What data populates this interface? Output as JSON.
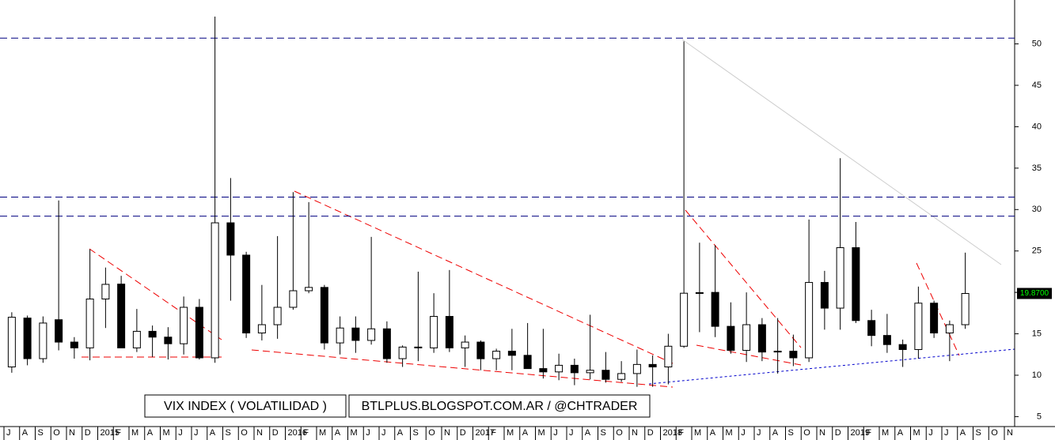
{
  "chart_data": {
    "type": "candlestick",
    "annotations": [
      "VIX INDEX ( VOLATILIDAD )",
      "BTLPLUS.BLOGSPOT.COM.AR / @CHTRADER"
    ],
    "categories": [
      "J",
      "A",
      "S",
      "O",
      "N",
      "D",
      "2015",
      "F",
      "M",
      "A",
      "M",
      "J",
      "J",
      "A",
      "S",
      "O",
      "N",
      "D",
      "2016",
      "F",
      "M",
      "A",
      "M",
      "J",
      "J",
      "A",
      "S",
      "O",
      "N",
      "D",
      "2017",
      "F",
      "M",
      "A",
      "M",
      "J",
      "J",
      "A",
      "S",
      "O",
      "N",
      "D",
      "2018",
      "F",
      "M",
      "A",
      "M",
      "J",
      "J",
      "A",
      "S",
      "O",
      "N",
      "D",
      "2019",
      "F",
      "M",
      "A",
      "M",
      "J",
      "J",
      "A",
      "S",
      "O",
      "N"
    ],
    "open": [
      11.0,
      16.9,
      12.0,
      16.7,
      14.0,
      13.3,
      19.2,
      21.0,
      13.3,
      15.3,
      14.6,
      13.8,
      18.2,
      12.1,
      28.4,
      24.5,
      15.1,
      16.1,
      18.2,
      20.2,
      20.6,
      13.9,
      15.7,
      14.2,
      15.6,
      12.0,
      13.4,
      13.3,
      17.1,
      13.3,
      14.0,
      12.0,
      12.9,
      12.4,
      10.8,
      10.4,
      11.2,
      10.3,
      10.6,
      9.5,
      10.2,
      11.3,
      11.0,
      13.5,
      19.9,
      20.0,
      15.9,
      13.0,
      16.1,
      12.8,
      12.9,
      12.1,
      21.2,
      18.1,
      25.4,
      16.6,
      14.8,
      13.7,
      13.1,
      18.7,
      15.1,
      16.1,
      null,
      null,
      null
    ],
    "high": [
      17.6,
      17.2,
      17.1,
      31.1,
      14.6,
      25.2,
      23.0,
      22.0,
      18.0,
      16.0,
      15.8,
      19.5,
      19.2,
      53.3,
      33.8,
      24.9,
      20.9,
      26.8,
      32.1,
      30.9,
      20.9,
      17.1,
      17.1,
      26.7,
      16.5,
      13.6,
      22.5,
      19.9,
      22.7,
      14.8,
      14.2,
      13.2,
      15.6,
      16.3,
      15.6,
      12.6,
      12.0,
      17.3,
      12.8,
      11.7,
      13.1,
      12.4,
      15.0,
      50.3,
      26.0,
      25.7,
      18.8,
      20.0,
      16.9,
      16.9,
      14.9,
      28.8,
      22.6,
      36.2,
      28.5,
      17.9,
      17.4,
      14.3,
      20.7,
      19.0,
      16.6,
      24.8,
      null,
      null,
      null
    ],
    "low": [
      10.3,
      11.2,
      11.5,
      13.0,
      12.0,
      11.8,
      15.7,
      13.8,
      12.8,
      12.2,
      11.9,
      12.5,
      11.9,
      11.5,
      19.0,
      14.5,
      14.2,
      14.4,
      17.9,
      19.9,
      13.1,
      12.5,
      12.7,
      13.7,
      11.5,
      11.0,
      11.7,
      12.7,
      12.8,
      11.0,
      10.6,
      10.6,
      10.6,
      10.8,
      9.6,
      9.4,
      8.8,
      9.5,
      9.1,
      9.2,
      8.6,
      8.6,
      8.9,
      13.3,
      15.2,
      14.6,
      12.6,
      11.6,
      11.7,
      10.2,
      11.1,
      11.6,
      15.5,
      15.5,
      16.3,
      13.5,
      12.7,
      11.0,
      12.0,
      14.5,
      11.7,
      15.6,
      null,
      null,
      null
    ],
    "close": [
      17.0,
      12.0,
      16.3,
      14.0,
      13.3,
      19.2,
      20.97,
      13.3,
      15.3,
      14.6,
      13.8,
      18.2,
      12.1,
      28.4,
      24.5,
      15.1,
      16.1,
      18.2,
      20.2,
      20.6,
      13.9,
      15.7,
      14.2,
      15.6,
      12.0,
      13.4,
      13.3,
      17.1,
      13.3,
      14.0,
      11.99,
      12.9,
      12.4,
      10.8,
      10.4,
      11.2,
      10.3,
      10.6,
      9.5,
      10.2,
      11.3,
      11.0,
      13.5,
      19.9,
      19.97,
      15.9,
      13.0,
      16.1,
      12.8,
      12.9,
      12.1,
      21.2,
      18.1,
      25.4,
      16.6,
      14.8,
      13.7,
      13.1,
      18.7,
      15.1,
      16.1,
      19.87,
      null,
      null,
      null
    ],
    "last_price": {
      "value": 19.87,
      "label": "19.8700"
    },
    "levels": [
      50.7,
      31.5,
      29.2
    ],
    "ylim": [
      3.8,
      55.3
    ],
    "yticks": [
      5,
      10,
      15,
      20,
      25,
      30,
      35,
      40,
      45,
      50
    ]
  }
}
